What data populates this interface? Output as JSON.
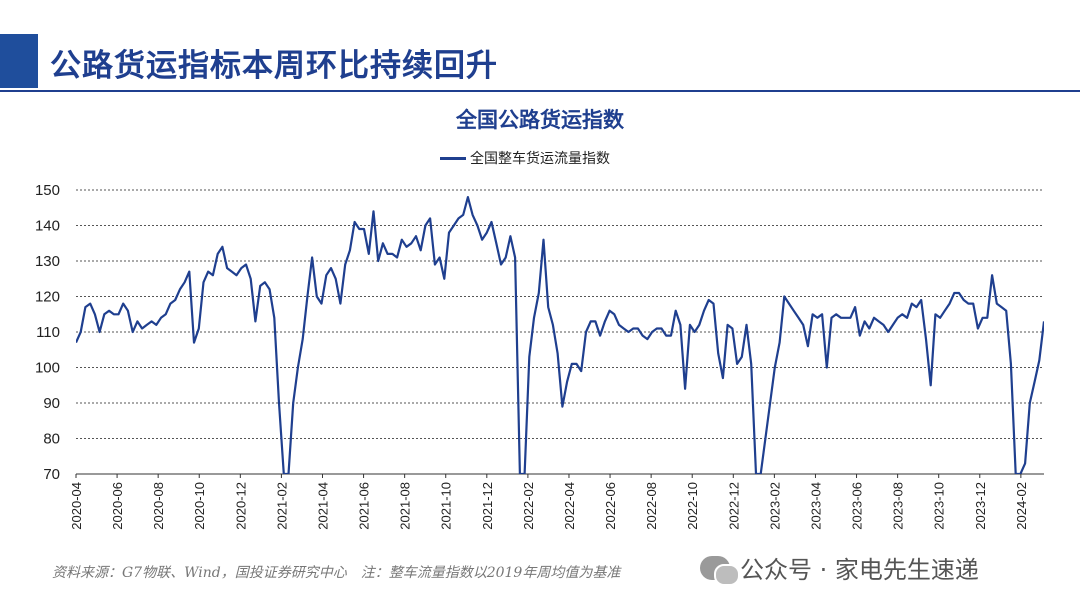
{
  "page_title": "公路货运指标本周环比持续回升",
  "source_note": "资料来源：G7物联、Wind，国投证券研究中心　注：整车流量指数以2019年周均值为基准",
  "watermark": {
    "label": "公众号 · 家电先生速递",
    "icon": "wechat-icon"
  },
  "colors": {
    "accent": "#1f4e9c",
    "line": "#1f3f8f"
  },
  "chart_data": {
    "type": "line",
    "title": "全国公路货运指数",
    "xlabel": "",
    "ylabel": "",
    "ylim": [
      70,
      150
    ],
    "yticks": [
      70,
      80,
      90,
      100,
      110,
      120,
      130,
      140,
      150
    ],
    "grid": "horizontal-dashed",
    "legend_position": "top-center",
    "x_start": "2020-04",
    "x_tick_labels": [
      "2020-04",
      "2020-06",
      "2020-08",
      "2020-10",
      "2020-12",
      "2021-02",
      "2021-04",
      "2021-06",
      "2021-08",
      "2021-10",
      "2021-12",
      "2022-02",
      "2022-04",
      "2022-06",
      "2022-08",
      "2022-10",
      "2022-12",
      "2023-02",
      "2023-04",
      "2023-06",
      "2023-08",
      "2023-10",
      "2023-12",
      "2024-02"
    ],
    "series": [
      {
        "name": "全国整车货运流量指数",
        "values": [
          107,
          110,
          117,
          118,
          115,
          110,
          115,
          116,
          115,
          115,
          118,
          116,
          110,
          113,
          111,
          112,
          113,
          112,
          114,
          115,
          118,
          119,
          122,
          124,
          127,
          107,
          111,
          124,
          127,
          126,
          132,
          134,
          128,
          127,
          126,
          128,
          129,
          125,
          113,
          123,
          124,
          122,
          114,
          90,
          69,
          69,
          90,
          100,
          108,
          120,
          131,
          120,
          118,
          126,
          128,
          125,
          118,
          129,
          133,
          141,
          139,
          139,
          132,
          144,
          130,
          135,
          132,
          132,
          131,
          136,
          134,
          135,
          137,
          133,
          140,
          142,
          129,
          131,
          125,
          138,
          140,
          142,
          143,
          148,
          143,
          140,
          136,
          138,
          141,
          135,
          129,
          131,
          137,
          131,
          69,
          69,
          103,
          114,
          121,
          136,
          117,
          112,
          104,
          89,
          96,
          101,
          101,
          99,
          110,
          113,
          113,
          109,
          113,
          116,
          115,
          112,
          111,
          110,
          111,
          111,
          109,
          108,
          110,
          111,
          111,
          109,
          109,
          116,
          112,
          94,
          112,
          110,
          112,
          116,
          119,
          118,
          104,
          97,
          112,
          111,
          101,
          103,
          112,
          101,
          69,
          69,
          80,
          90,
          100,
          107,
          120,
          118,
          116,
          114,
          112,
          106,
          115,
          114,
          115,
          100,
          114,
          115,
          114,
          114,
          114,
          117,
          109,
          113,
          111,
          114,
          113,
          112,
          110,
          112,
          114,
          115,
          114,
          118,
          117,
          119,
          108,
          95,
          115,
          114,
          116,
          118,
          121,
          121,
          119,
          118,
          118,
          111,
          114,
          114,
          126,
          118,
          117,
          116,
          101,
          69,
          69,
          73,
          90,
          96,
          102,
          113
        ]
      }
    ]
  }
}
